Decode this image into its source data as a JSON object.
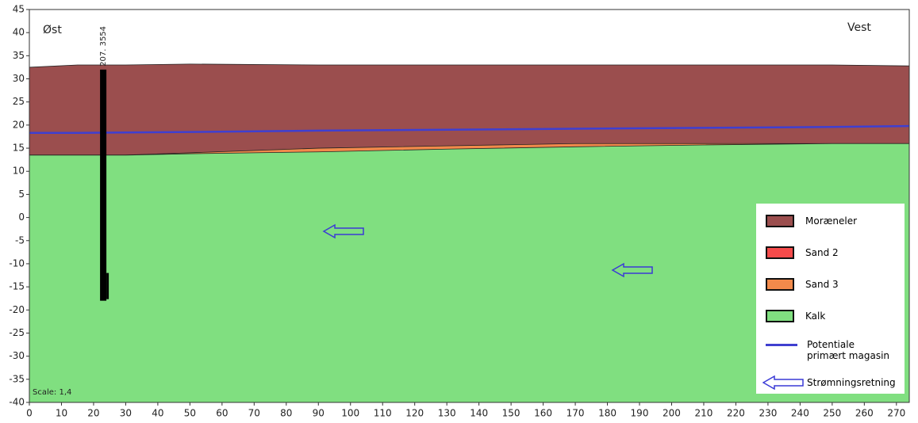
{
  "chart_data": {
    "type": "cross-section",
    "annotations": {
      "left": "Øst",
      "right": "Vest",
      "scale": "Scale: 1,4"
    },
    "x": [
      0,
      15,
      30,
      50,
      90,
      130,
      170,
      210,
      250,
      274
    ],
    "series": [
      {
        "name": "Moræneler",
        "color": "#9b4e4e",
        "values": [
          32.5,
          33,
          33,
          33.2,
          33,
          33,
          33,
          33,
          33,
          32.8
        ]
      },
      {
        "name": "Sand 3",
        "color": "#f28a4b",
        "values": [
          13.5,
          13.5,
          13.5,
          14,
          15,
          15.5,
          16,
          16,
          16,
          16
        ]
      },
      {
        "name": "Kalk",
        "color": "#80df80",
        "values": [
          13.5,
          13.5,
          13.5,
          13.8,
          14.2,
          14.8,
          15.3,
          15.7,
          16,
          16
        ]
      }
    ],
    "line": {
      "name": "Potentiale primært magasin",
      "color": "#3f3fd0",
      "values": [
        18.3,
        18.3,
        18.4,
        18.5,
        18.8,
        19,
        19.2,
        19.4,
        19.6,
        19.8
      ]
    },
    "legend": [
      {
        "name": "Moræneler",
        "color": "#9b4e4e"
      },
      {
        "name": "Sand 2",
        "color": "#f54b4b"
      },
      {
        "name": "Sand 3",
        "color": "#f28a4b"
      },
      {
        "name": "Kalk",
        "color": "#80df80"
      }
    ],
    "flow_label": "Strømningsretning",
    "well": {
      "label": "207. 3554",
      "x": 23,
      "top": 32,
      "bottom": -18
    },
    "xlim": [
      0,
      274
    ],
    "ylim": [
      -40,
      45
    ],
    "xticks": [
      0,
      10,
      20,
      30,
      40,
      50,
      60,
      70,
      80,
      90,
      100,
      110,
      120,
      130,
      140,
      150,
      160,
      170,
      180,
      190,
      200,
      210,
      220,
      230,
      240,
      250,
      260,
      270
    ],
    "yticks": [
      45,
      40,
      35,
      30,
      25,
      20,
      15,
      10,
      5,
      0,
      -5,
      -10,
      -15,
      -20,
      -25,
      -30,
      -35,
      -40
    ]
  }
}
